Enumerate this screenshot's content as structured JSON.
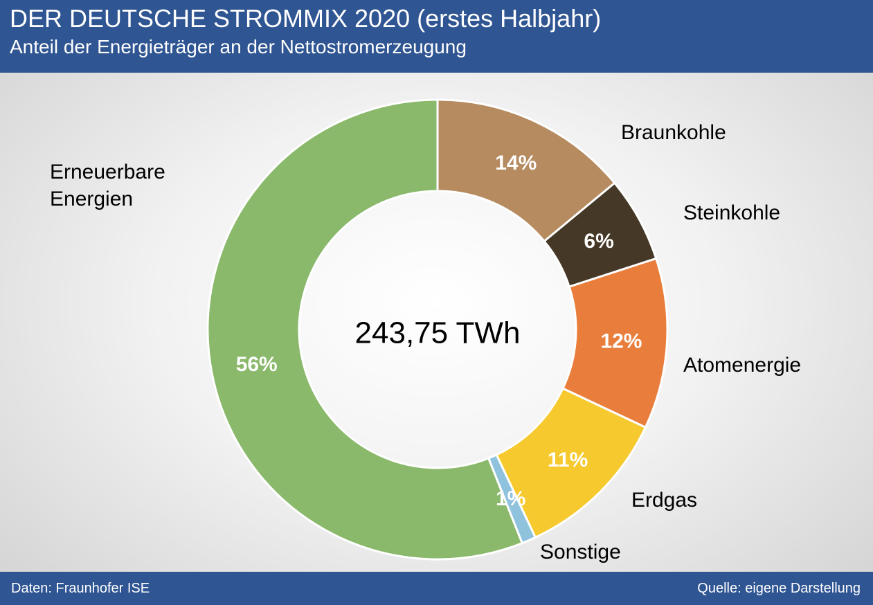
{
  "chart_data": {
    "type": "donut",
    "title": "DER DEUTSCHE STROMMIX 2020 (erstes Halbjahr)",
    "subtitle": "Anteil der Energieträger an der Nettostromerzeugung",
    "center_label": "243,75 TWh",
    "categories": [
      "Braunkohle",
      "Steinkohle",
      "Atomenergie",
      "Erdgas",
      "Sonstige",
      "Erneuerbare Energien"
    ],
    "values": [
      14,
      6,
      12,
      11,
      1,
      56
    ],
    "value_labels": [
      "14%",
      "6%",
      "12%",
      "11%",
      "1%",
      "56%"
    ],
    "colors": [
      "#b68b60",
      "#453826",
      "#e97e3c",
      "#f6c92f",
      "#8fc3dd",
      "#8ab96b"
    ],
    "source_left": "Daten: Fraunhofer ISE",
    "source_right": "Quelle: eigene Darstellung"
  }
}
